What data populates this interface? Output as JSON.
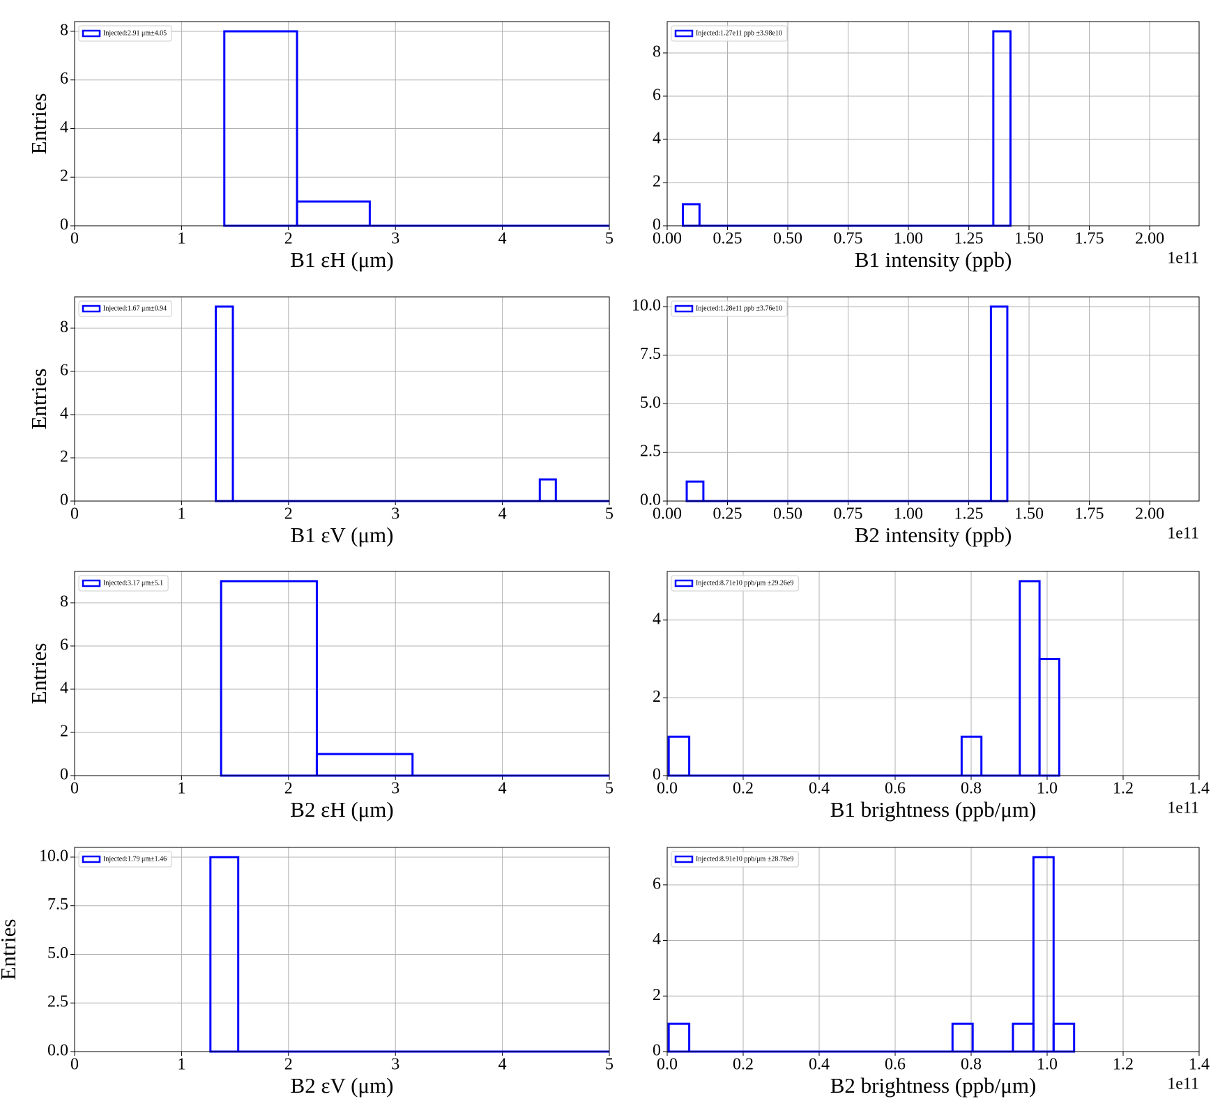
{
  "chart_data": [
    {
      "type": "histogram",
      "xlabel": "B1 εH (μm)",
      "ylabel": "Entries",
      "legend": "Injected:2.91 μm±4.05",
      "color": "#0000ff",
      "grid": true,
      "legend_corner": "upper left",
      "bins": [
        1.4,
        2.08,
        2.76,
        5.5
      ],
      "counts": [
        8,
        1,
        0
      ],
      "xlim": [
        0,
        5
      ],
      "xticks": [
        0,
        1,
        2,
        3,
        4,
        5
      ],
      "ylim": [
        0,
        8.4
      ],
      "yticks": [
        0,
        2,
        4,
        6,
        8
      ]
    },
    {
      "type": "histogram",
      "xlabel": "B1 intensity (ppb)",
      "x_offset_label": "1e11",
      "legend": "Injected:1.27e11 ppb ±3.98e10",
      "color": "#0000ff",
      "grid": true,
      "legend_corner": "upper left",
      "bins": [
        0.065,
        0.134,
        1.352,
        1.423
      ],
      "counts": [
        1,
        0,
        9
      ],
      "xlim": [
        0,
        2.205
      ],
      "xticks": [
        {
          "value": 0,
          "label": "0.00"
        },
        {
          "value": 0.25,
          "label": "0.25"
        },
        {
          "value": 0.5,
          "label": "0.50"
        },
        {
          "value": 0.75,
          "label": "0.75"
        },
        {
          "value": 1,
          "label": "1.00"
        },
        {
          "value": 1.25,
          "label": "1.25"
        },
        {
          "value": 1.5,
          "label": "1.50"
        },
        {
          "value": 1.75,
          "label": "1.75"
        },
        {
          "value": 2,
          "label": "2.00"
        }
      ],
      "ylim": [
        0,
        9.45
      ],
      "yticks": [
        0,
        2,
        4,
        6,
        8
      ]
    },
    {
      "type": "histogram",
      "xlabel": "B1 εV (μm)",
      "ylabel": "Entries",
      "legend": "Injected:1.67 μm±0.94",
      "color": "#0000ff",
      "grid": true,
      "legend_corner": "upper left",
      "bins": [
        1.32,
        1.48,
        4.35,
        4.5,
        5.5
      ],
      "counts": [
        9,
        0,
        1,
        0
      ],
      "xlim": [
        0,
        5
      ],
      "xticks": [
        0,
        1,
        2,
        3,
        4,
        5
      ],
      "ylim": [
        0,
        9.45
      ],
      "yticks": [
        0,
        2,
        4,
        6,
        8
      ]
    },
    {
      "type": "histogram",
      "xlabel": "B2 intensity (ppb)",
      "x_offset_label": "1e11",
      "legend": "Injected:1.28e11 ppb ±3.76e10",
      "color": "#0000ff",
      "grid": true,
      "legend_corner": "upper left",
      "bins": [
        0.081,
        0.15,
        1.342,
        1.41
      ],
      "counts": [
        1,
        0,
        10
      ],
      "xlim": [
        0,
        2.205
      ],
      "xticks": [
        {
          "value": 0,
          "label": "0.00"
        },
        {
          "value": 0.25,
          "label": "0.25"
        },
        {
          "value": 0.5,
          "label": "0.50"
        },
        {
          "value": 0.75,
          "label": "0.75"
        },
        {
          "value": 1,
          "label": "1.00"
        },
        {
          "value": 1.25,
          "label": "1.25"
        },
        {
          "value": 1.5,
          "label": "1.50"
        },
        {
          "value": 1.75,
          "label": "1.75"
        },
        {
          "value": 2,
          "label": "2.00"
        }
      ],
      "ylim": [
        0,
        10.5
      ],
      "yticks": [
        {
          "value": 0,
          "label": "0.0"
        },
        {
          "value": 2.5,
          "label": "2.5"
        },
        {
          "value": 5,
          "label": "5.0"
        },
        {
          "value": 7.5,
          "label": "7.5"
        },
        {
          "value": 10,
          "label": "10.0"
        }
      ]
    },
    {
      "type": "histogram",
      "xlabel": "B2 εH (μm)",
      "ylabel": "Entries",
      "legend": "Injected:3.17 μm±5.1",
      "color": "#0000ff",
      "grid": true,
      "legend_corner": "upper left",
      "bins": [
        1.37,
        2.265,
        3.16,
        5.8
      ],
      "counts": [
        9,
        1,
        0
      ],
      "xlim": [
        0,
        5
      ],
      "xticks": [
        0,
        1,
        2,
        3,
        4,
        5
      ],
      "ylim": [
        0,
        9.45
      ],
      "yticks": [
        0,
        2,
        4,
        6,
        8
      ]
    },
    {
      "type": "histogram",
      "xlabel": "B1 brightness (ppb/μm)",
      "x_offset_label": "1e11",
      "legend": "Injected:8.71e10 ppb/μm ±29.26e9",
      "color": "#0000ff",
      "grid": true,
      "legend_corner": "upper left",
      "bins": [
        0.004,
        0.058,
        0.775,
        0.827,
        0.928,
        0.98,
        1.032
      ],
      "counts": [
        1,
        0,
        1,
        0,
        5,
        3
      ],
      "xlim": [
        0,
        1.4
      ],
      "xticks": [
        {
          "value": 0,
          "label": "0.0"
        },
        0.2,
        0.4,
        0.6,
        0.8,
        {
          "value": 1,
          "label": "1.0"
        },
        1.2,
        1.4
      ],
      "ylim": [
        0,
        5.25
      ],
      "yticks": [
        0,
        2,
        4
      ]
    },
    {
      "type": "histogram",
      "xlabel": "B2 εV (μm)",
      "ylabel": "Entries",
      "legend": "Injected:1.79 μm±1.46",
      "color": "#0000ff",
      "grid": true,
      "legend_corner": "upper left",
      "bins": [
        1.27,
        1.53,
        5.5
      ],
      "counts": [
        10,
        0
      ],
      "xlim": [
        0,
        5
      ],
      "xticks": [
        0,
        1,
        2,
        3,
        4,
        5
      ],
      "ylim": [
        0,
        10.5
      ],
      "yticks": [
        {
          "value": 0,
          "label": "0.0"
        },
        {
          "value": 2.5,
          "label": "2.5"
        },
        {
          "value": 5,
          "label": "5.0"
        },
        {
          "value": 7.5,
          "label": "7.5"
        },
        {
          "value": 10,
          "label": "10.0"
        }
      ]
    },
    {
      "type": "histogram",
      "xlabel": "B2 brightness (ppb/μm)",
      "x_offset_label": "1e11",
      "legend": "Injected:8.91e10 ppb/μm ±28.78e9",
      "color": "#0000ff",
      "grid": true,
      "legend_corner": "upper left",
      "bins": [
        0.004,
        0.058,
        0.751,
        0.804,
        0.91,
        0.964,
        1.017,
        1.071
      ],
      "counts": [
        1,
        0,
        1,
        0,
        1,
        7,
        1
      ],
      "xlim": [
        0,
        1.4
      ],
      "xticks": [
        {
          "value": 0,
          "label": "0.0"
        },
        0.2,
        0.4,
        0.6,
        0.8,
        {
          "value": 1,
          "label": "1.0"
        },
        1.2,
        1.4
      ],
      "ylim": [
        0,
        7.35
      ],
      "yticks": [
        0,
        2,
        4,
        6
      ]
    }
  ]
}
